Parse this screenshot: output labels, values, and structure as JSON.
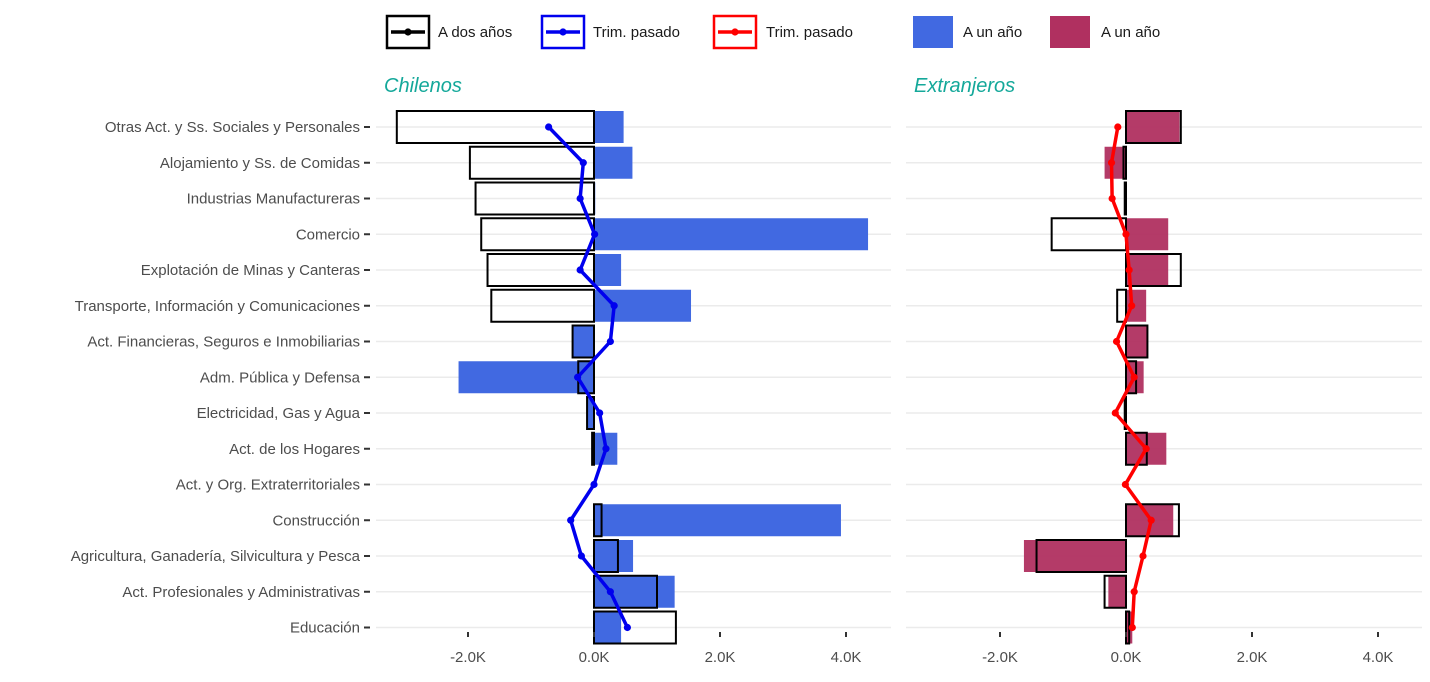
{
  "chart_data": {
    "type": "bar",
    "categories": [
      "Otras Act. y Ss. Sociales y Personales",
      "Alojamiento y Ss. de Comidas",
      "Industrias Manufactureras",
      "Comercio",
      "Explotación de Minas y Canteras",
      "Transporte, Información y Comunicaciones",
      "Act. Financieras, Seguros e Inmobiliarias",
      "Adm. Pública y Defensa",
      "Electricidad, Gas y Agua",
      "Act. de los Hogares",
      "Act. y Org. Extraterritoriales",
      "Construcción",
      "Agricultura, Ganadería, Silvicultura y Pesca",
      "Act. Profesionales y Administrativas",
      "Educación"
    ],
    "x_ticks": [
      -2000,
      0,
      2000,
      4000
    ],
    "x_tick_labels": [
      "-2.0K",
      "0.0K",
      "2.0K",
      "4.0K"
    ],
    "xlim": [
      -3500,
      4600
    ],
    "legend": {
      "position": "top",
      "items": [
        {
          "kind": "line",
          "label": "A dos años",
          "color": "#000000"
        },
        {
          "kind": "line",
          "label": "Trim. pasado",
          "color": "#0000ee"
        },
        {
          "kind": "line",
          "label": "Trim. pasado",
          "color": "#ff0000"
        },
        {
          "kind": "fill",
          "label": "A un año",
          "color": "#4169e1"
        },
        {
          "kind": "fill",
          "label": "A un año",
          "color": "#b03060"
        }
      ]
    },
    "panels": [
      {
        "title": "Chilenos",
        "fill_color": "#4169e1",
        "line_color": "#0000ee",
        "a_un_anio": [
          470,
          610,
          20,
          4350,
          430,
          1540,
          -340,
          -2150,
          -110,
          370,
          0,
          3920,
          620,
          1280,
          430
        ],
        "a_dos_anios": [
          -3130,
          -1970,
          -1880,
          -1790,
          -1690,
          -1630,
          -340,
          -250,
          -110,
          -30,
          0,
          120,
          380,
          1000,
          1300
        ],
        "trim_pasado": [
          -720,
          -170,
          -220,
          10,
          -220,
          320,
          260,
          -260,
          90,
          190,
          0,
          -370,
          -200,
          260,
          530
        ]
      },
      {
        "title": "Extranjeros",
        "fill_color": "#b03060",
        "line_color": "#ff0000",
        "a_un_anio": [
          850,
          -340,
          -20,
          670,
          670,
          320,
          340,
          280,
          -20,
          640,
          0,
          750,
          -1620,
          -280,
          100
        ],
        "a_dos_anios": [
          870,
          -40,
          -20,
          -1180,
          870,
          -140,
          340,
          160,
          -20,
          330,
          0,
          840,
          -1420,
          -340,
          50
        ],
        "trim_pasado": [
          -130,
          -230,
          -220,
          0,
          50,
          90,
          -150,
          130,
          -170,
          320,
          -10,
          400,
          270,
          130,
          100
        ]
      }
    ]
  }
}
